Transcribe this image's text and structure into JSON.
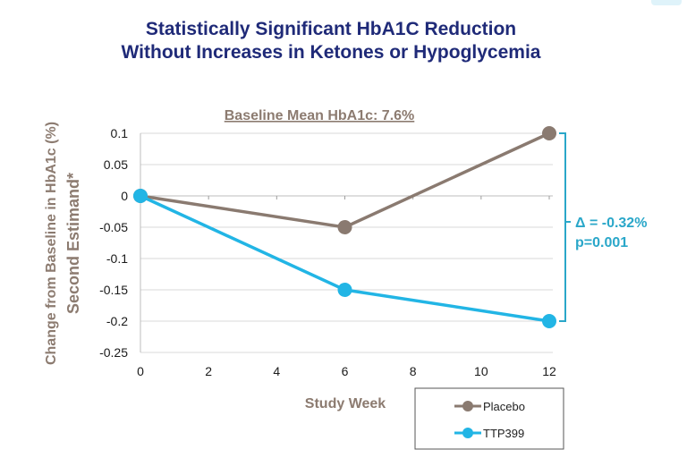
{
  "title_line1": "Statistically Significant HbA1C Reduction",
  "title_line2": "Without Increases in Ketones or Hypoglycemia",
  "chart_data": {
    "type": "line",
    "title": "Statistically Significant HbA1C Reduction Without Increases in Ketones or Hypoglycemia",
    "subtitle": "Baseline Mean HbA1c: 7.6%",
    "xlabel": "Study Week",
    "ylabel": "Change from Baseline in HbA1c (%)",
    "ylabel2": "Second Estimand*",
    "xlim": [
      0,
      12
    ],
    "ylim": [
      -0.25,
      0.1
    ],
    "x_ticks": [
      0,
      2,
      4,
      6,
      8,
      10,
      12
    ],
    "y_ticks": [
      0.1,
      0.05,
      0,
      -0.05,
      -0.1,
      -0.15,
      -0.2,
      -0.25
    ],
    "y_tick_labels": [
      "0.1",
      "0.05",
      "0",
      "-0.05",
      "-0.1",
      "-0.15",
      "-0.2",
      "-0.25"
    ],
    "grid": true,
    "legend_position": "bottom-right",
    "series": [
      {
        "name": "Placebo",
        "color": "#8a7a70",
        "x": [
          0,
          6,
          12
        ],
        "y": [
          0,
          -0.05,
          0.1
        ]
      },
      {
        "name": "TTP399",
        "color": "#22b5e5",
        "x": [
          0,
          6,
          12
        ],
        "y": [
          0,
          -0.15,
          -0.2
        ]
      }
    ],
    "annotation": {
      "line1": "Δ = -0.32%",
      "line2": "p=0.001",
      "color": "#2aa7c9"
    }
  }
}
